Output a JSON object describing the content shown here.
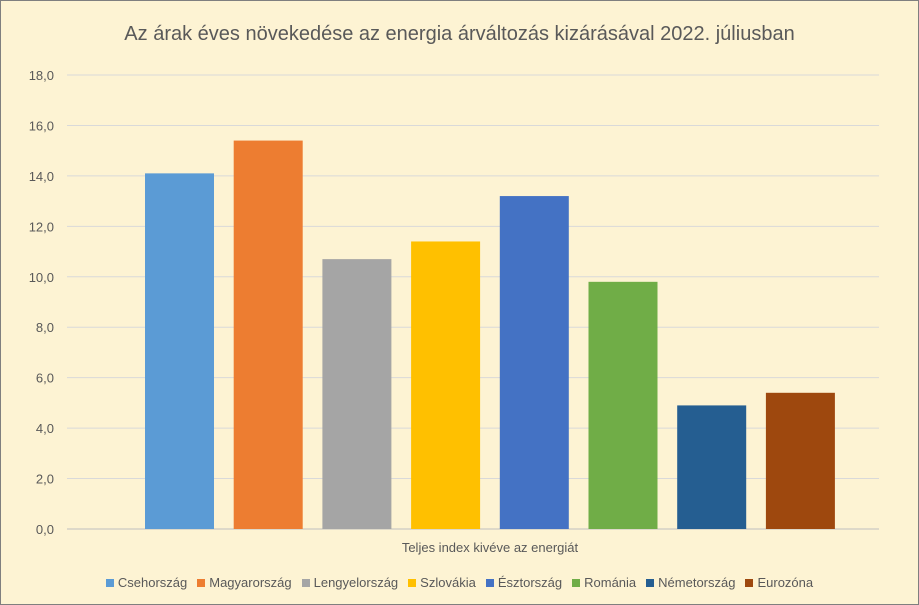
{
  "chart_data": {
    "type": "bar",
    "title": "Az árak éves növekedése az energia árváltozás kizárásával 2022. júliusban",
    "xlabel": "Teljes index kivéve az energiát",
    "ylabel": "",
    "ylim": [
      0,
      18
    ],
    "yticks": [
      "0,0",
      "2,0",
      "4,0",
      "6,0",
      "8,0",
      "10,0",
      "12,0",
      "14,0",
      "16,0",
      "18,0"
    ],
    "grid": true,
    "legend_position": "bottom",
    "series": [
      {
        "name": "Csehország",
        "values": [
          14.1
        ],
        "color": "#5b9bd5"
      },
      {
        "name": "Magyarország",
        "values": [
          15.4
        ],
        "color": "#ed7d31"
      },
      {
        "name": "Lengyelország",
        "values": [
          10.7
        ],
        "color": "#a5a5a5"
      },
      {
        "name": "Szlovákia",
        "values": [
          11.4
        ],
        "color": "#ffc000"
      },
      {
        "name": "Észtország",
        "values": [
          13.2
        ],
        "color": "#4472c4"
      },
      {
        "name": "Románia",
        "values": [
          9.8
        ],
        "color": "#70ad47"
      },
      {
        "name": "Németország",
        "values": [
          4.9
        ],
        "color": "#255e91"
      },
      {
        "name": "Eurozóna",
        "values": [
          5.4
        ],
        "color": "#9e480e"
      }
    ]
  }
}
